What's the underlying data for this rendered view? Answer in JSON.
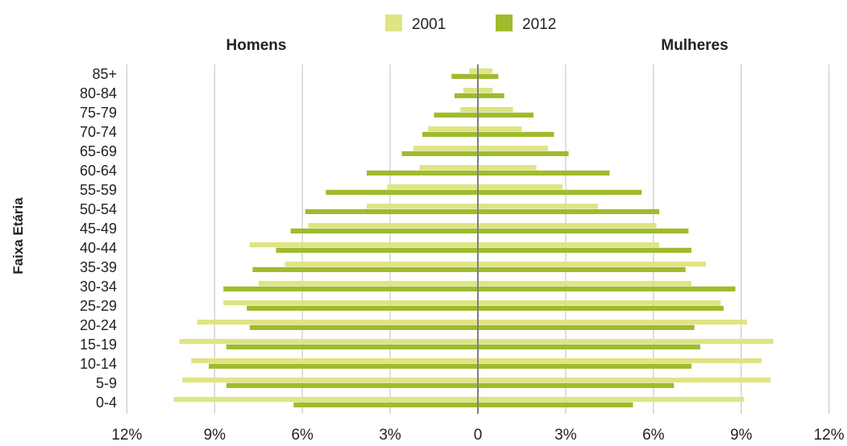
{
  "chart_data": {
    "type": "bar",
    "orientation": "horizontal",
    "layout": "population-pyramid",
    "side_labels": {
      "left": "Homens",
      "right": "Mulheres"
    },
    "ylabel": "Faixa Etária",
    "xlabel": "",
    "xlim": [
      -12,
      12
    ],
    "x_tick_labels": [
      "12%",
      "9%",
      "6%",
      "3%",
      "0",
      "3%",
      "6%",
      "9%",
      "12%"
    ],
    "x_tick_values": [
      -12,
      -9,
      -6,
      -3,
      0,
      3,
      6,
      9,
      12
    ],
    "grid": "vertical",
    "legend_position": "top-center",
    "categories": [
      "0-4",
      "5-9",
      "10-14",
      "15-19",
      "20-24",
      "25-29",
      "30-34",
      "35-39",
      "40-44",
      "45-49",
      "50-54",
      "55-59",
      "60-64",
      "65-69",
      "70-74",
      "75-79",
      "80-84",
      "85+"
    ],
    "series": [
      {
        "name": "2001",
        "color": "#dfe484",
        "men": [
          10.4,
          10.1,
          9.8,
          10.2,
          9.6,
          8.7,
          7.5,
          6.6,
          7.8,
          5.8,
          3.8,
          3.1,
          2.0,
          2.2,
          1.7,
          0.6,
          0.5,
          0.3
        ],
        "women": [
          9.1,
          10.0,
          9.7,
          10.1,
          9.2,
          8.3,
          7.3,
          7.8,
          6.2,
          6.1,
          4.1,
          2.9,
          2.0,
          2.4,
          1.5,
          1.2,
          0.5,
          0.5
        ]
      },
      {
        "name": "2012",
        "color": "#9fbb2d",
        "men": [
          6.3,
          8.6,
          9.2,
          8.6,
          7.8,
          7.9,
          8.7,
          7.7,
          6.9,
          6.4,
          5.9,
          5.2,
          3.8,
          2.6,
          1.9,
          1.5,
          0.8,
          0.9
        ],
        "women": [
          5.3,
          6.7,
          7.3,
          7.6,
          7.4,
          8.4,
          8.8,
          7.1,
          7.3,
          7.2,
          6.2,
          5.6,
          4.5,
          3.1,
          2.6,
          1.9,
          0.9,
          0.7
        ]
      }
    ]
  }
}
